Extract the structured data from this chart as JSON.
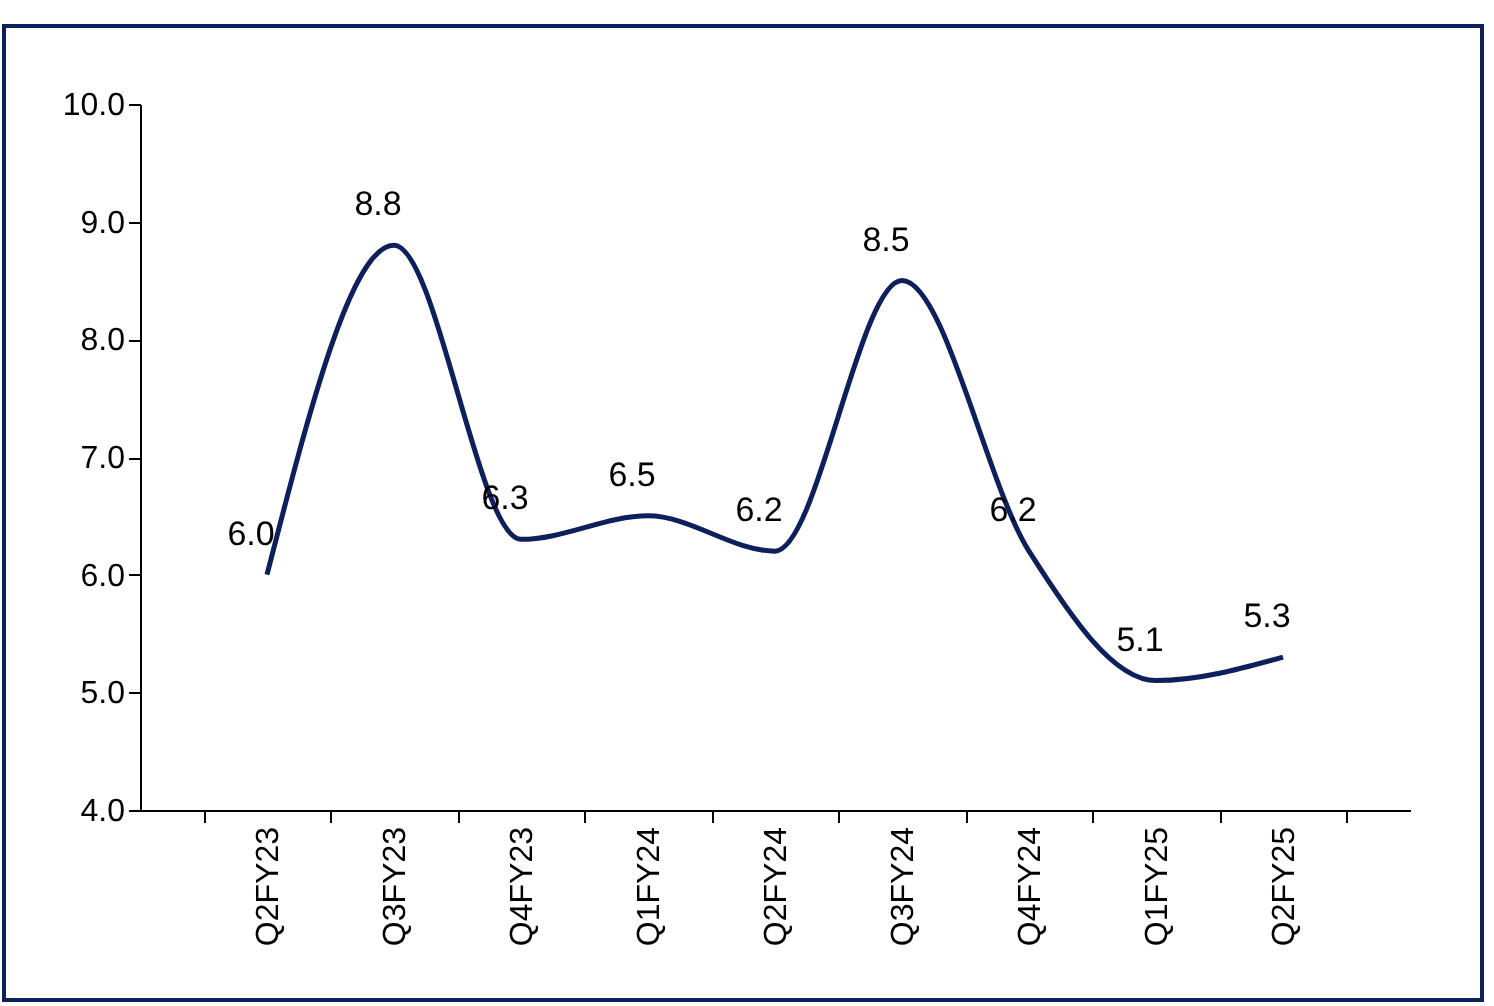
{
  "chart_data": {
    "type": "line",
    "categories": [
      "Q2FY23",
      "Q3FY23",
      "Q4FY23",
      "Q1FY24",
      "Q2FY24",
      "Q3FY24",
      "Q4FY24",
      "Q1FY25",
      "Q2FY25"
    ],
    "series": [
      {
        "color": "#0d1f5c",
        "values": [
          6.0,
          8.8,
          6.3,
          6.5,
          6.2,
          8.5,
          6.2,
          5.1,
          5.3
        ],
        "value_labels": [
          "6.0",
          "8.8",
          "6.3",
          "6.5",
          "6.2",
          "8.5",
          "6.2",
          "5.1",
          "5.3"
        ]
      }
    ],
    "ylim": [
      4,
      10
    ],
    "yticks": [
      {
        "value": 4,
        "label": "4.0"
      },
      {
        "value": 5,
        "label": "5.0"
      },
      {
        "value": 6,
        "label": "6.0"
      },
      {
        "value": 7,
        "label": "7.0"
      },
      {
        "value": 8,
        "label": "8.0"
      },
      {
        "value": 9,
        "label": "9.0"
      },
      {
        "value": 10,
        "label": "10.0"
      }
    ],
    "grid": false,
    "legend": false,
    "marker": "none",
    "line_style": "solid"
  }
}
